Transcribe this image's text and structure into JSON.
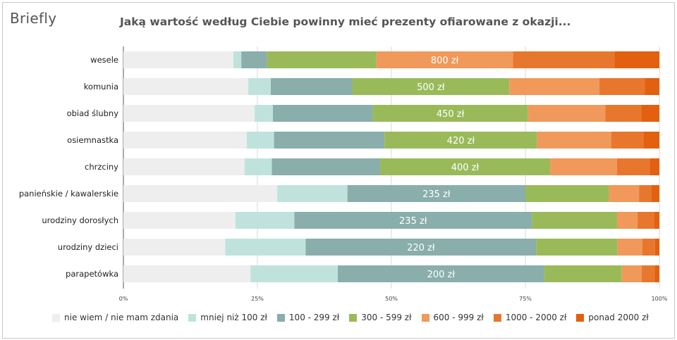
{
  "brand": "Briefly",
  "chart_data": {
    "type": "bar",
    "orientation": "horizontal",
    "stacked": true,
    "title": "Jaką wartość według Ciebie powinny mieć prezenty ofiarowane z okazji...",
    "xlim": [
      0,
      100
    ],
    "x_ticks": [
      "0%",
      "25%",
      "50%",
      "75%",
      "100%"
    ],
    "grid": true,
    "legend_position": "bottom",
    "categories": [
      "wesele",
      "komunia",
      "obiad ślubny",
      "osiemnastka",
      "chrzciny",
      "panieńskie / kawalerskie",
      "urodziny dorosłych",
      "urodziny dzieci",
      "parapetówka"
    ],
    "bar_labels": [
      "800 zł",
      "500 zł",
      "450 zł",
      "420 zł",
      "400 zł",
      "235 zł",
      "235 zł",
      "220 zł",
      "200 zł"
    ],
    "series": [
      {
        "name": "nie wiem / nie mam zdania",
        "color": "#eeeeee",
        "values": [
          20.5,
          23.3,
          24.5,
          23.0,
          22.6,
          28.7,
          20.9,
          19.0,
          23.7
        ]
      },
      {
        "name": "mniej niż 100 zł",
        "color": "#bfe3dc",
        "values": [
          1.5,
          4.2,
          3.4,
          5.1,
          5.1,
          13.1,
          11.0,
          15.0,
          16.3
        ]
      },
      {
        "name": "100 - 299 zł",
        "color": "#89aeab",
        "values": [
          4.8,
          15.2,
          18.6,
          20.6,
          20.2,
          33.2,
          44.3,
          43.0,
          38.5
        ]
      },
      {
        "name": "300 - 599 zł",
        "color": "#9aba5a",
        "values": [
          20.4,
          29.3,
          29.0,
          28.5,
          31.7,
          15.6,
          15.9,
          15.2,
          14.5
        ]
      },
      {
        "name": "600 - 999 zł",
        "color": "#f0995a",
        "values": [
          25.5,
          16.8,
          14.4,
          13.8,
          12.5,
          5.6,
          3.8,
          4.6,
          3.7
        ]
      },
      {
        "name": "1000 - 2000 zł",
        "color": "#e8772e",
        "values": [
          18.9,
          8.5,
          6.7,
          6.0,
          6.1,
          2.3,
          3.1,
          2.4,
          2.4
        ]
      },
      {
        "name": "ponad 2000 zł",
        "color": "#e2600f",
        "values": [
          8.4,
          2.7,
          3.4,
          3.0,
          1.8,
          1.5,
          1.0,
          0.8,
          0.9
        ]
      }
    ]
  }
}
